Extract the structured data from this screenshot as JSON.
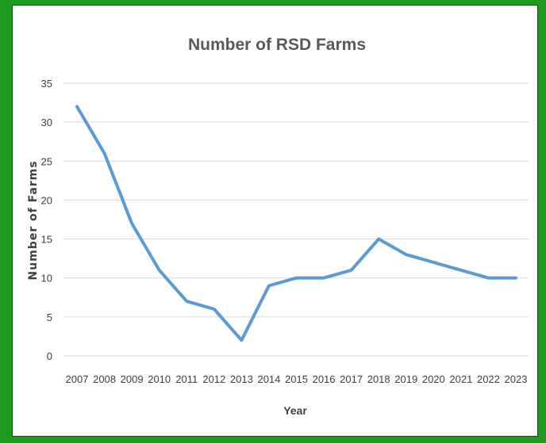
{
  "chart_data": {
    "type": "line",
    "title": "Number of RSD Farms",
    "xlabel": "Year",
    "ylabel": "Number of Farms",
    "x": [
      "2007",
      "2008",
      "2009",
      "2010",
      "2011",
      "2012",
      "2013",
      "2014",
      "2015",
      "2016",
      "2017",
      "2018",
      "2019",
      "2020",
      "2021",
      "2022",
      "2023"
    ],
    "series": [
      {
        "values": [
          32,
          26,
          17,
          11,
          7,
          6,
          2,
          9,
          10,
          10,
          11,
          15,
          13,
          12,
          11,
          10,
          10
        ]
      }
    ],
    "ylim": [
      0,
      35
    ],
    "yticks": [
      0,
      5,
      10,
      15,
      20,
      25,
      30,
      35
    ],
    "grid": true,
    "legend": "none",
    "colors": {
      "series": "#5b9bd5",
      "frame": "#1e9a1e"
    }
  }
}
